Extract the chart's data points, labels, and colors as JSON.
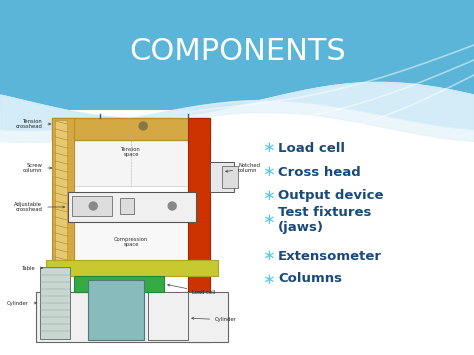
{
  "title": "COMPONENTS",
  "title_color": "#4a9fd4",
  "title_fontsize": 22,
  "bg_blue_color": "#4aadd6",
  "bg_light_blue": "#a8d8ea",
  "bullet_items": [
    "Load cell",
    "Cross head",
    "Output device",
    "Test fixtures\n(jaws)",
    "Extensometer",
    "Columns"
  ],
  "bullet_color": "#1a4a7a",
  "bullet_fontsize": 9.5,
  "bullet_star_color": "#5bc8e8",
  "slide_bg": "#f0f8ff"
}
